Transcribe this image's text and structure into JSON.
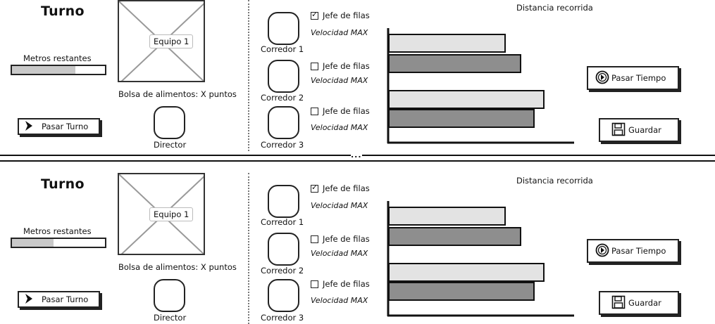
{
  "panels": [
    {
      "turno": "Turno",
      "metros_label": "Metros restantes",
      "metros_progress": 0.68,
      "pasar_turno_label": "Pasar Turno",
      "equipo_label": "Equipo 1",
      "bolsa_label": "Bolsa de alimentos: X puntos",
      "director_label": "Director",
      "corredores": [
        {
          "label": "Corredor 1",
          "jefe_label": "Jefe de filas",
          "jefe_checked": true,
          "velocidad_label": "Velocidad MAX"
        },
        {
          "label": "Corredor 2",
          "jefe_label": "Jefe de filas",
          "jefe_checked": false,
          "velocidad_label": "Velocidad MAX"
        },
        {
          "label": "Corredor 3",
          "jefe_label": "Jefe de filas",
          "jefe_checked": false,
          "velocidad_label": "Velocidad MAX"
        }
      ],
      "pasar_tiempo_label": "Pasar Tiempo",
      "guardar_label": "Guardar"
    },
    {
      "turno": "Turno",
      "metros_label": "Metros restantes",
      "metros_progress": 0.45,
      "pasar_turno_label": "Pasar Turno",
      "equipo_label": "Equipo 1",
      "bolsa_label": "Bolsa de alimentos: X puntos",
      "director_label": "Director",
      "corredores": [
        {
          "label": "Corredor 1",
          "jefe_label": "Jefe de filas",
          "jefe_checked": true,
          "velocidad_label": "Velocidad MAX"
        },
        {
          "label": "Corredor 2",
          "jefe_label": "Jefe de filas",
          "jefe_checked": false,
          "velocidad_label": "Velocidad MAX"
        },
        {
          "label": "Corredor 3",
          "jefe_label": "Jefe de filas",
          "jefe_checked": false,
          "velocidad_label": "Velocidad MAX"
        }
      ],
      "pasar_tiempo_label": "Pasar Tiempo",
      "guardar_label": "Guardar"
    }
  ],
  "separator_label": "...",
  "chart_data": [
    {
      "type": "bar",
      "orientation": "horizontal",
      "title": "Distancia recorrida",
      "values": [
        165,
        187,
        220,
        206
      ],
      "colors": [
        "#e3e3e3",
        "#8e8e8e",
        "#e3e3e3",
        "#8e8e8e"
      ]
    },
    {
      "type": "bar",
      "orientation": "horizontal",
      "title": "Distancia recorrida",
      "values": [
        165,
        187,
        220,
        206
      ],
      "colors": [
        "#e3e3e3",
        "#8e8e8e",
        "#e3e3e3",
        "#8e8e8e"
      ]
    }
  ],
  "icons": {
    "pasar_turno": "chevron-right-icon",
    "pasar_tiempo": "circle-chevron-right-icon",
    "guardar": "floppy-disk-icon"
  }
}
